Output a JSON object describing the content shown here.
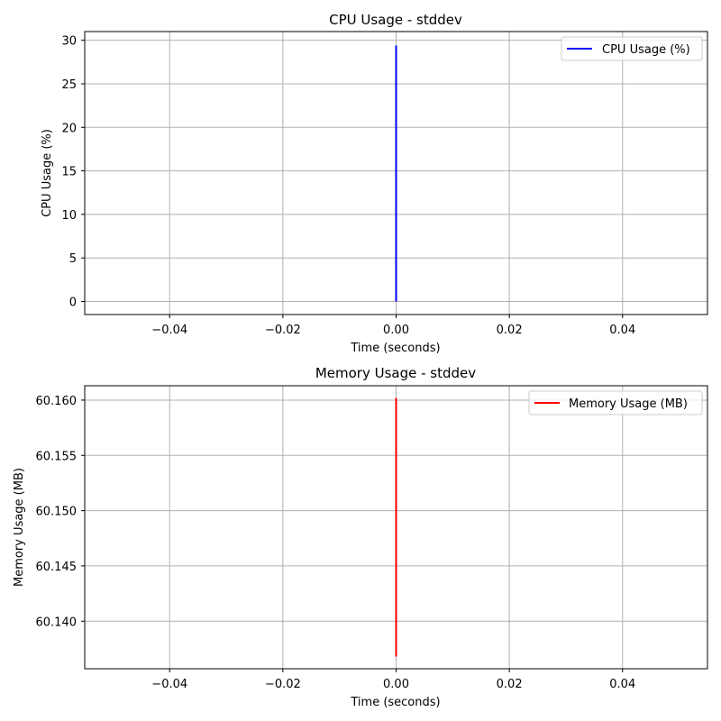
{
  "chart_data": [
    {
      "type": "line",
      "title": "CPU Usage - stddev",
      "xlabel": "Time (seconds)",
      "ylabel": "CPU Usage (%)",
      "xlim": [
        -0.055,
        0.055
      ],
      "ylim": [
        -1.5,
        31
      ],
      "grid": true,
      "legend_position": "top-right",
      "xticks": [
        -0.04,
        -0.02,
        0.0,
        0.02,
        0.04
      ],
      "xtick_labels": [
        "−0.04",
        "−0.02",
        "0.00",
        "0.02",
        "0.04"
      ],
      "yticks": [
        0,
        5,
        10,
        15,
        20,
        25,
        30
      ],
      "ytick_labels": [
        "0",
        "5",
        "10",
        "15",
        "20",
        "25",
        "30"
      ],
      "series": [
        {
          "name": "CPU Usage (%)",
          "color": "#0000ff",
          "x": [
            0.0,
            0.0
          ],
          "y": [
            0.0,
            29.4
          ]
        }
      ]
    },
    {
      "type": "line",
      "title": "Memory Usage - stddev",
      "xlabel": "Time (seconds)",
      "ylabel": "Memory Usage (MB)",
      "xlim": [
        -0.055,
        0.055
      ],
      "ylim": [
        60.1357,
        60.1613
      ],
      "grid": true,
      "legend_position": "top-right",
      "xticks": [
        -0.04,
        -0.02,
        0.0,
        0.02,
        0.04
      ],
      "xtick_labels": [
        "−0.04",
        "−0.02",
        "0.00",
        "0.02",
        "0.04"
      ],
      "yticks": [
        60.14,
        60.145,
        60.15,
        60.155,
        60.16
      ],
      "ytick_labels": [
        "60.140",
        "60.145",
        "60.150",
        "60.155",
        "60.160"
      ],
      "series": [
        {
          "name": "Memory Usage (MB)",
          "color": "#ff0000",
          "x": [
            0.0,
            0.0
          ],
          "y": [
            60.1368,
            60.1602
          ]
        }
      ]
    }
  ]
}
